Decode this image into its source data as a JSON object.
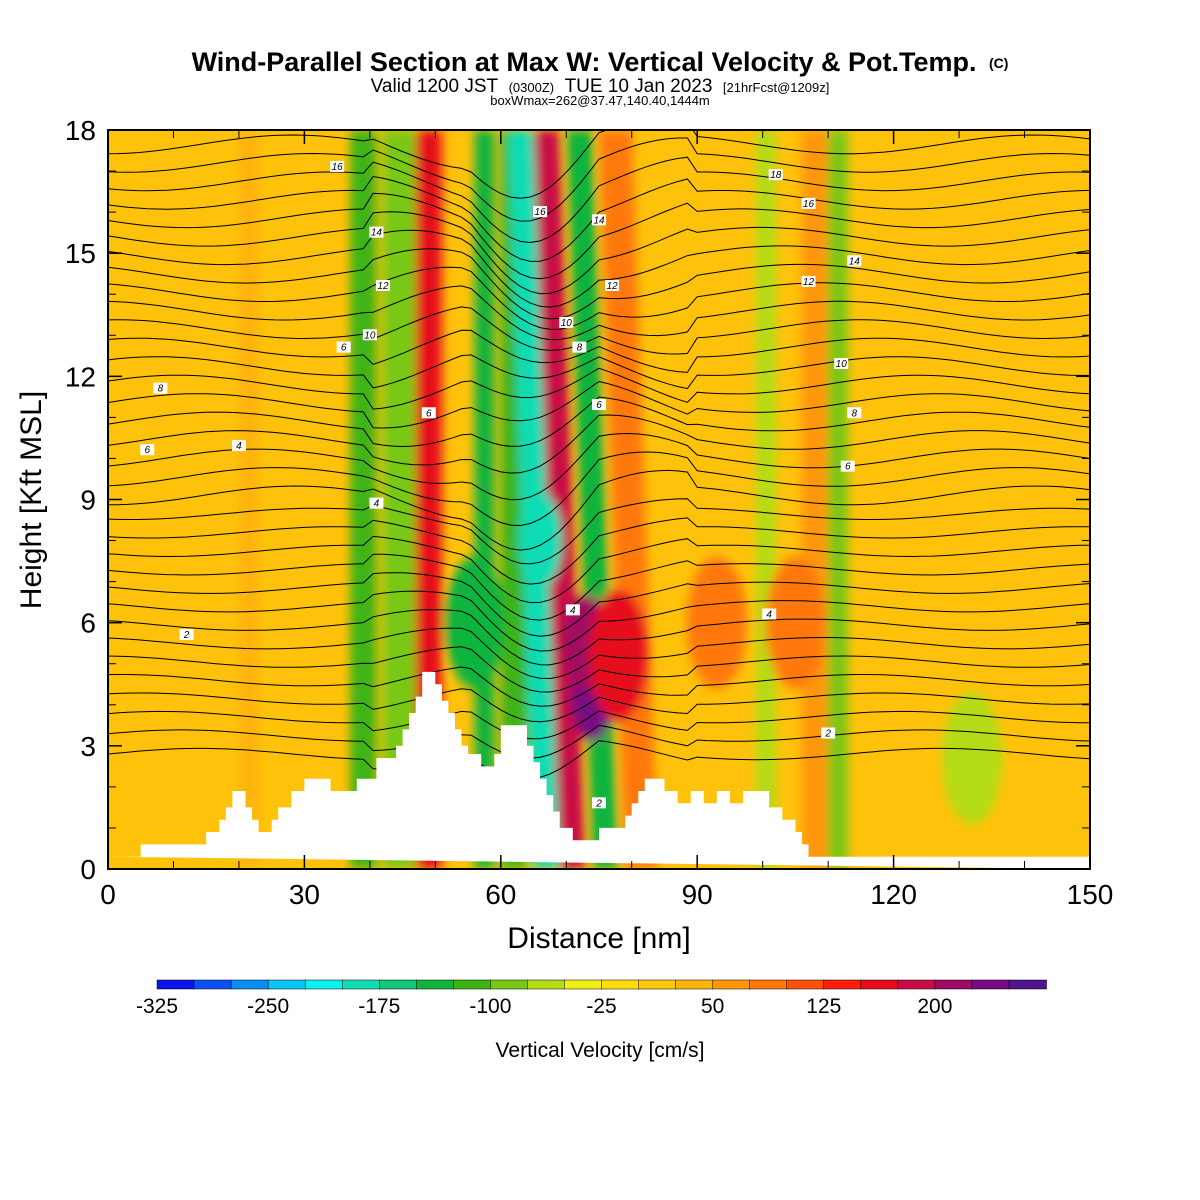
{
  "header": {
    "title": "Wind-Parallel Section at Max W: Vertical Velocity & Pot.Temp.",
    "title_mark": "(C)",
    "valid_prefix": "Valid 1200 JST",
    "valid_utc": "(0300Z)",
    "valid_date": "TUE 10 Jan 2023",
    "forecast": "[21hrFcst@1209z]",
    "boxinfo": "boxWmax=262@37.47,140.40,1444m"
  },
  "chart_data": {
    "type": "heatmap",
    "xlabel": "Distance [nm]",
    "ylabel": "Height [Kft MSL]",
    "xlim": [
      0,
      150
    ],
    "ylim": [
      0,
      18
    ],
    "x_ticks": [
      0,
      30,
      60,
      90,
      120,
      150
    ],
    "y_ticks": [
      0,
      3,
      6,
      9,
      12,
      15,
      18
    ],
    "colorbar": {
      "title": "Vertical Velocity [cm/s]",
      "labels": [
        "-325",
        "-250",
        "-175",
        "-100",
        "-25",
        "50",
        "125",
        "200"
      ],
      "colors": [
        "#0a14f0",
        "#0a50f5",
        "#0a8cf5",
        "#0ac8f5",
        "#0af0f0",
        "#10dcb4",
        "#10c878",
        "#10b43c",
        "#3cb414",
        "#78c814",
        "#b4dc14",
        "#f0f014",
        "#ffdc0a",
        "#ffc80a",
        "#ffb40a",
        "#ff960a",
        "#ff780a",
        "#ff500a",
        "#ff1e0a",
        "#e60a1e",
        "#c80a46",
        "#a00a64",
        "#780a82",
        "#50148c"
      ]
    },
    "vertical_velocity_bands": [
      {
        "x": 20,
        "w": 3,
        "value": 40
      },
      {
        "x": 37,
        "w": 4,
        "value": -110
      },
      {
        "x": 42,
        "w": 5,
        "value": -80
      },
      {
        "x": 47,
        "w": 4,
        "value": 150
      },
      {
        "x": 56,
        "w": 3,
        "value": -150
      },
      {
        "x": 60,
        "w": 4,
        "value": -110
      },
      {
        "x": 65,
        "w": 4,
        "value": -180
      },
      {
        "x": 69,
        "w": 4,
        "value": 180
      },
      {
        "x": 74,
        "w": 4,
        "value": -130
      },
      {
        "x": 79,
        "w": 5,
        "value": 80
      },
      {
        "x": 99,
        "w": 3,
        "value": -60
      },
      {
        "x": 106,
        "w": 4,
        "value": 60
      },
      {
        "x": 110,
        "w": 3,
        "value": -90
      }
    ],
    "vertical_velocity_cells": [
      {
        "x": 74,
        "y": 4.3,
        "value": 240
      },
      {
        "x": 73,
        "y": 5.5,
        "value": 200
      },
      {
        "x": 78,
        "y": 5.2,
        "value": 150
      },
      {
        "x": 66,
        "y": 8.0,
        "value": -200
      },
      {
        "x": 56,
        "y": 6.0,
        "value": -150
      },
      {
        "x": 132,
        "y": 2.7,
        "value": -70
      },
      {
        "x": 105,
        "y": 6.0,
        "value": 80
      },
      {
        "x": 93,
        "y": 6.0,
        "value": 80
      }
    ],
    "potential_temperature_contours": [
      {
        "label": "2",
        "label_x": 12,
        "label_y": 5.7,
        "base": 5.5
      },
      {
        "label": "4",
        "label_x": 41,
        "label_y": 8.9,
        "base": 8.6
      },
      {
        "label": "6",
        "label_x": 6,
        "label_y": 10.2,
        "base": 10.0
      },
      {
        "label": "8",
        "label_x": 8,
        "label_y": 11.7,
        "base": 11.5
      },
      {
        "label": "10",
        "label_x": 40,
        "label_y": 13.0,
        "base": 12.6
      },
      {
        "label": "12",
        "label_x": 42,
        "label_y": 14.2,
        "base": 13.8
      },
      {
        "label": "14",
        "label_x": 41,
        "label_y": 15.5,
        "base": 15.1
      },
      {
        "label": "16",
        "label_x": 35,
        "label_y": 17.1,
        "base": 16.7
      }
    ],
    "contour_labels_extra": [
      {
        "text": "4",
        "x": 20,
        "y": 10.3
      },
      {
        "text": "6",
        "x": 36,
        "y": 12.7
      },
      {
        "text": "6",
        "x": 49,
        "y": 11.1
      },
      {
        "text": "16",
        "x": 66,
        "y": 16.0
      },
      {
        "text": "14",
        "x": 75,
        "y": 15.8
      },
      {
        "text": "12",
        "x": 77,
        "y": 14.2
      },
      {
        "text": "10",
        "x": 70,
        "y": 13.3
      },
      {
        "text": "8",
        "x": 72,
        "y": 12.7
      },
      {
        "text": "6",
        "x": 75,
        "y": 11.3
      },
      {
        "text": "4",
        "x": 71,
        "y": 6.3
      },
      {
        "text": "2",
        "x": 75,
        "y": 1.6
      },
      {
        "text": "18",
        "x": 102,
        "y": 16.9
      },
      {
        "text": "16",
        "x": 107,
        "y": 16.2
      },
      {
        "text": "14",
        "x": 114,
        "y": 14.8
      },
      {
        "text": "12",
        "x": 107,
        "y": 14.3
      },
      {
        "text": "10",
        "x": 112,
        "y": 12.3
      },
      {
        "text": "8",
        "x": 114,
        "y": 11.1
      },
      {
        "text": "6",
        "x": 113,
        "y": 9.8
      },
      {
        "text": "4",
        "x": 101,
        "y": 6.2
      },
      {
        "text": "2",
        "x": 110,
        "y": 3.3
      }
    ],
    "terrain": [
      [
        0,
        0.3
      ],
      [
        5,
        0.3
      ],
      [
        5,
        0.6
      ],
      [
        15,
        0.6
      ],
      [
        15,
        0.9
      ],
      [
        17,
        0.9
      ],
      [
        17,
        1.2
      ],
      [
        18,
        1.2
      ],
      [
        18,
        1.5
      ],
      [
        19,
        1.5
      ],
      [
        19,
        1.9
      ],
      [
        21,
        1.9
      ],
      [
        21,
        1.5
      ],
      [
        22,
        1.5
      ],
      [
        22,
        1.2
      ],
      [
        23,
        1.2
      ],
      [
        23,
        0.9
      ],
      [
        25,
        0.9
      ],
      [
        25,
        1.2
      ],
      [
        26,
        1.2
      ],
      [
        26,
        1.5
      ],
      [
        28,
        1.5
      ],
      [
        28,
        1.9
      ],
      [
        30,
        1.9
      ],
      [
        30,
        2.2
      ],
      [
        34,
        2.2
      ],
      [
        34,
        1.9
      ],
      [
        38,
        1.9
      ],
      [
        38,
        2.2
      ],
      [
        41,
        2.2
      ],
      [
        41,
        2.7
      ],
      [
        44,
        2.7
      ],
      [
        44,
        3.0
      ],
      [
        45,
        3.0
      ],
      [
        45,
        3.4
      ],
      [
        46,
        3.4
      ],
      [
        46,
        3.8
      ],
      [
        47,
        3.8
      ],
      [
        47,
        4.2
      ],
      [
        48,
        4.2
      ],
      [
        48,
        4.8
      ],
      [
        50,
        4.8
      ],
      [
        50,
        4.5
      ],
      [
        51,
        4.5
      ],
      [
        51,
        4.1
      ],
      [
        52,
        4.1
      ],
      [
        52,
        3.8
      ],
      [
        53,
        3.8
      ],
      [
        53,
        3.4
      ],
      [
        54,
        3.4
      ],
      [
        54,
        3.0
      ],
      [
        55,
        3.0
      ],
      [
        55,
        2.8
      ],
      [
        57,
        2.8
      ],
      [
        57,
        2.5
      ],
      [
        59,
        2.5
      ],
      [
        59,
        2.8
      ],
      [
        60,
        2.8
      ],
      [
        60,
        3.5
      ],
      [
        64,
        3.5
      ],
      [
        64,
        3.0
      ],
      [
        65,
        3.0
      ],
      [
        65,
        2.6
      ],
      [
        66,
        2.6
      ],
      [
        66,
        2.2
      ],
      [
        67,
        2.2
      ],
      [
        67,
        1.8
      ],
      [
        68,
        1.8
      ],
      [
        68,
        1.4
      ],
      [
        69,
        1.4
      ],
      [
        69,
        1.0
      ],
      [
        71,
        1.0
      ],
      [
        71,
        0.7
      ],
      [
        75,
        0.7
      ],
      [
        75,
        1.0
      ],
      [
        79,
        1.0
      ],
      [
        79,
        1.3
      ],
      [
        80,
        1.3
      ],
      [
        80,
        1.6
      ],
      [
        81,
        1.6
      ],
      [
        81,
        1.9
      ],
      [
        82,
        1.9
      ],
      [
        82,
        2.2
      ],
      [
        85,
        2.2
      ],
      [
        85,
        1.9
      ],
      [
        87,
        1.9
      ],
      [
        87,
        1.6
      ],
      [
        89,
        1.6
      ],
      [
        89,
        1.9
      ],
      [
        91,
        1.9
      ],
      [
        91,
        1.6
      ],
      [
        93,
        1.6
      ],
      [
        93,
        1.9
      ],
      [
        95,
        1.9
      ],
      [
        95,
        1.6
      ],
      [
        97,
        1.6
      ],
      [
        97,
        1.9
      ],
      [
        101,
        1.9
      ],
      [
        101,
        1.5
      ],
      [
        103,
        1.5
      ],
      [
        103,
        1.2
      ],
      [
        105,
        1.2
      ],
      [
        105,
        0.9
      ],
      [
        106,
        0.9
      ],
      [
        106,
        0.6
      ],
      [
        107,
        0.6
      ],
      [
        107,
        0.3
      ],
      [
        150,
        0.3
      ],
      [
        150,
        0
      ]
    ]
  }
}
